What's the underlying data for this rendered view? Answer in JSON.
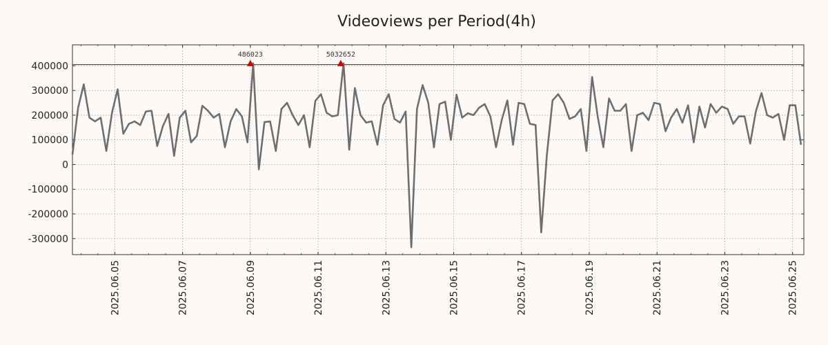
{
  "chart_data": {
    "type": "line",
    "title": "Videoviews per Period(4h)",
    "xlabel": "",
    "ylabel": "",
    "ylim": [
      -365000,
      485000
    ],
    "xlim": [
      "2025-06-03 18:00",
      "2025-06-25 08:00"
    ],
    "grid": true,
    "y_ticks": [
      400000,
      300000,
      200000,
      100000,
      0,
      -100000,
      -200000,
      -300000
    ],
    "y_tick_labels": [
      "400000",
      "300000",
      "200000",
      "100000",
      "0",
      "-100000",
      "-200000",
      "-300000"
    ],
    "x_ticks": [
      "2025-06-05",
      "2025-06-07",
      "2025-06-09",
      "2025-06-11",
      "2025-06-13",
      "2025-06-15",
      "2025-06-17",
      "2025-06-19",
      "2025-06-21",
      "2025-06-23",
      "2025-06-25"
    ],
    "x_tick_labels": [
      "2025.06.05",
      "2025.06.07",
      "2025.06.09",
      "2025.06.11",
      "2025.06.13",
      "2025.06.15",
      "2025.06.17",
      "2025.06.19",
      "2025.06.21",
      "2025.06.23",
      "2025.06.25"
    ],
    "hline": 405000,
    "line_color": "#6e6e6e",
    "marker_color": "#d40000",
    "annotations": [
      {
        "x": "2025-06-09 00:00",
        "y": 410000,
        "label": "486023"
      },
      {
        "x": "2025-06-11 16:00",
        "y": 410000,
        "label": "5032652"
      }
    ],
    "series": [
      {
        "start": "2025-06-03 18:00",
        "step_hours": 4,
        "values": [
          40000,
          230000,
          325000,
          190000,
          175000,
          190000,
          55000,
          210000,
          305000,
          125000,
          165000,
          175000,
          160000,
          215000,
          218000,
          75000,
          155000,
          205000,
          35000,
          190000,
          218000,
          90000,
          115000,
          238000,
          218000,
          190000,
          205000,
          70000,
          175000,
          225000,
          195000,
          90000,
          410000,
          -20000,
          172000,
          175000,
          55000,
          225000,
          250000,
          200000,
          160000,
          200000,
          70000,
          258000,
          285000,
          210000,
          195000,
          200000,
          410000,
          60000,
          310000,
          200000,
          170000,
          175000,
          80000,
          240000,
          285000,
          185000,
          170000,
          215000,
          -335000,
          225000,
          322000,
          250000,
          70000,
          245000,
          255000,
          100000,
          283000,
          190000,
          208000,
          200000,
          230000,
          245000,
          195000,
          70000,
          180000,
          260000,
          80000,
          250000,
          245000,
          165000,
          160000,
          -275000,
          40000,
          260000,
          285000,
          250000,
          185000,
          195000,
          225000,
          55000,
          355000,
          195000,
          70000,
          268000,
          218000,
          218000,
          245000,
          55000,
          200000,
          210000,
          180000,
          250000,
          245000,
          135000,
          190000,
          225000,
          170000,
          240000,
          90000,
          235000,
          150000,
          245000,
          210000,
          235000,
          225000,
          165000,
          195000,
          195000,
          85000,
          215000,
          290000,
          200000,
          190000,
          205000,
          100000,
          240000,
          240000,
          80000
        ]
      }
    ]
  }
}
